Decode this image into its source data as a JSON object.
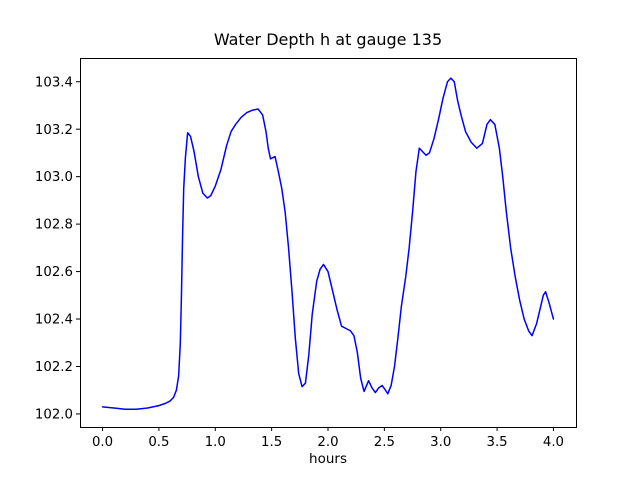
{
  "figure": {
    "background": "#ffffff"
  },
  "chart_data": {
    "type": "line",
    "title": "Water Depth h at gauge 135",
    "xlabel": "hours",
    "ylabel": "",
    "xlim": [
      -0.2,
      4.2
    ],
    "ylim": [
      101.945,
      103.5
    ],
    "grid": false,
    "legend": null,
    "line_color": "#0000ff",
    "axis_color": "#000000",
    "x_tick_values": [
      0.0,
      0.5,
      1.0,
      1.5,
      2.0,
      2.5,
      3.0,
      3.5,
      4.0
    ],
    "x_tick_labels": [
      "0.0",
      "0.5",
      "1.0",
      "1.5",
      "2.0",
      "2.5",
      "3.0",
      "3.5",
      "4.0"
    ],
    "y_tick_values": [
      102.0,
      102.2,
      102.4,
      102.6,
      102.8,
      103.0,
      103.2,
      103.4
    ],
    "y_tick_labels": [
      "102.0",
      "102.2",
      "102.4",
      "102.6",
      "102.8",
      "103.0",
      "103.2",
      "103.4"
    ],
    "series": [
      {
        "name": "water depth h",
        "x": [
          0.0,
          0.1,
          0.2,
          0.3,
          0.4,
          0.5,
          0.56,
          0.6,
          0.63,
          0.655,
          0.675,
          0.69,
          0.7,
          0.71,
          0.72,
          0.735,
          0.755,
          0.78,
          0.81,
          0.85,
          0.89,
          0.93,
          0.96,
          1.0,
          1.05,
          1.1,
          1.14,
          1.18,
          1.23,
          1.28,
          1.33,
          1.38,
          1.42,
          1.45,
          1.47,
          1.49,
          1.51,
          1.53,
          1.56,
          1.59,
          1.62,
          1.65,
          1.68,
          1.71,
          1.74,
          1.77,
          1.8,
          1.83,
          1.86,
          1.9,
          1.93,
          1.96,
          2.0,
          2.04,
          2.08,
          2.12,
          2.16,
          2.2,
          2.23,
          2.26,
          2.29,
          2.32,
          2.36,
          2.39,
          2.42,
          2.45,
          2.48,
          2.51,
          2.53,
          2.56,
          2.59,
          2.62,
          2.65,
          2.69,
          2.72,
          2.75,
          2.78,
          2.81,
          2.84,
          2.87,
          2.9,
          2.94,
          2.98,
          3.02,
          3.06,
          3.09,
          3.12,
          3.15,
          3.18,
          3.22,
          3.27,
          3.32,
          3.37,
          3.41,
          3.44,
          3.48,
          3.52,
          3.55,
          3.58,
          3.62,
          3.66,
          3.7,
          3.74,
          3.78,
          3.81,
          3.85,
          3.88,
          3.91,
          3.93,
          3.96,
          4.0
        ],
        "y": [
          102.03,
          102.025,
          102.02,
          102.02,
          102.025,
          102.035,
          102.045,
          102.055,
          102.07,
          102.1,
          102.16,
          102.3,
          102.5,
          102.75,
          102.95,
          103.08,
          103.185,
          103.17,
          103.11,
          103.0,
          102.93,
          102.91,
          102.92,
          102.96,
          103.03,
          103.13,
          103.19,
          103.22,
          103.25,
          103.27,
          103.28,
          103.285,
          103.26,
          103.19,
          103.12,
          103.075,
          103.08,
          103.085,
          103.02,
          102.95,
          102.85,
          102.7,
          102.52,
          102.32,
          102.17,
          102.115,
          102.13,
          102.25,
          102.42,
          102.56,
          102.61,
          102.63,
          102.6,
          102.52,
          102.44,
          102.37,
          102.36,
          102.35,
          102.33,
          102.26,
          102.15,
          102.095,
          102.14,
          102.11,
          102.09,
          102.11,
          102.12,
          102.1,
          102.085,
          102.12,
          102.2,
          102.32,
          102.45,
          102.58,
          102.7,
          102.85,
          103.02,
          103.12,
          103.105,
          103.09,
          103.1,
          103.16,
          103.24,
          103.33,
          103.4,
          103.415,
          103.4,
          103.32,
          103.26,
          103.19,
          103.145,
          103.12,
          103.14,
          103.22,
          103.24,
          103.22,
          103.12,
          103.0,
          102.86,
          102.7,
          102.58,
          102.48,
          102.4,
          102.35,
          102.33,
          102.38,
          102.44,
          102.5,
          102.515,
          102.47,
          102.4
        ]
      }
    ]
  }
}
